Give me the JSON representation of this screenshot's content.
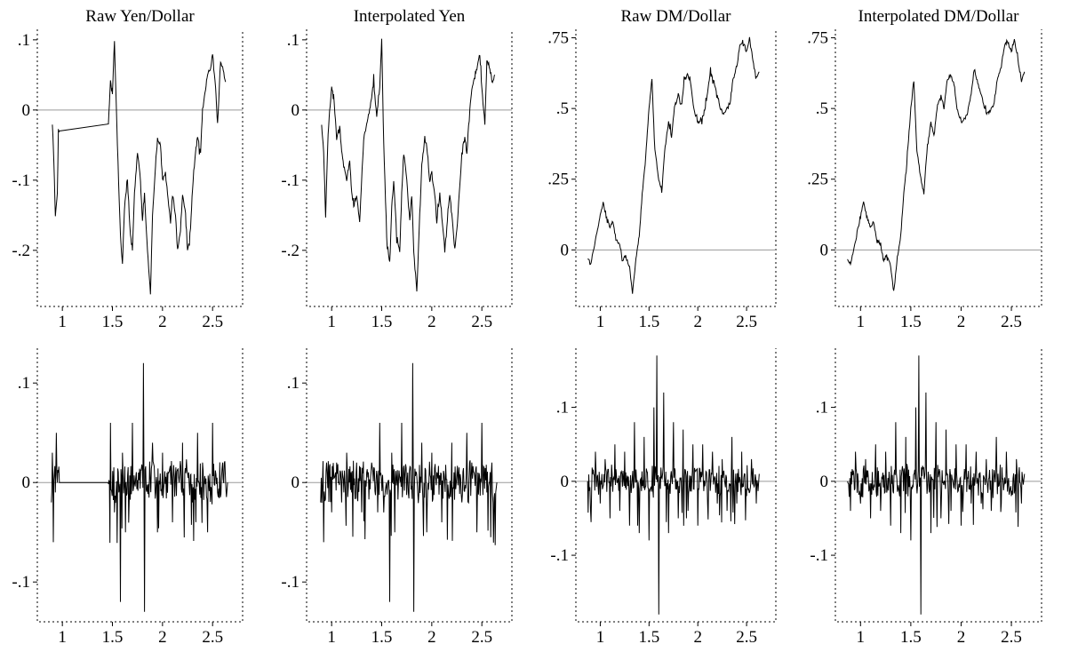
{
  "chart_data": [
    {
      "type": "line",
      "title": "Raw Yen/Dollar",
      "xlabel": "",
      "ylabel": "",
      "xlim": [
        0.75,
        2.8
      ],
      "ylim": [
        -0.28,
        0.115
      ],
      "xticks": [
        1,
        1.5,
        2,
        2.5
      ],
      "xticklabels": [
        "1",
        "1.5",
        "2",
        "2.5"
      ],
      "yticks": [
        0.1,
        0,
        -0.1,
        -0.2
      ],
      "yticklabels": [
        ".1",
        "0",
        "-.1",
        "-.2"
      ],
      "reference_line": 0,
      "grid": false,
      "series": [
        {
          "color": "#000000",
          "gap": [
            0.97,
            1.46
          ],
          "x": [
            0.9,
            0.91,
            0.93,
            0.95,
            0.96,
            0.97,
            1.46,
            1.48,
            1.5,
            1.52,
            1.55,
            1.58,
            1.6,
            1.62,
            1.65,
            1.68,
            1.7,
            1.72,
            1.75,
            1.78,
            1.8,
            1.82,
            1.85,
            1.88,
            1.9,
            1.93,
            1.95,
            1.98,
            2.0,
            2.03,
            2.05,
            2.08,
            2.1,
            2.13,
            2.15,
            2.18,
            2.2,
            2.23,
            2.25,
            2.28,
            2.3,
            2.33,
            2.35,
            2.38,
            2.4,
            2.43,
            2.45,
            2.48,
            2.5,
            2.53,
            2.55,
            2.58,
            2.6,
            2.63
          ],
          "y": [
            -0.02,
            -0.05,
            -0.15,
            -0.12,
            -0.03,
            -0.03,
            -0.02,
            0.04,
            0.02,
            0.1,
            -0.05,
            -0.18,
            -0.22,
            -0.14,
            -0.1,
            -0.18,
            -0.2,
            -0.12,
            -0.06,
            -0.1,
            -0.16,
            -0.12,
            -0.2,
            -0.26,
            -0.15,
            -0.08,
            -0.04,
            -0.05,
            -0.1,
            -0.09,
            -0.12,
            -0.16,
            -0.12,
            -0.15,
            -0.2,
            -0.17,
            -0.12,
            -0.15,
            -0.2,
            -0.17,
            -0.11,
            -0.06,
            -0.04,
            -0.06,
            0.0,
            0.03,
            0.05,
            0.06,
            0.08,
            0.03,
            -0.02,
            0.07,
            0.06,
            0.04
          ]
        }
      ]
    },
    {
      "type": "line",
      "title": "Interpolated Yen",
      "xlabel": "",
      "ylabel": "",
      "xlim": [
        0.75,
        2.8
      ],
      "ylim": [
        -0.28,
        0.115
      ],
      "xticks": [
        1,
        1.5,
        2,
        2.5
      ],
      "xticklabels": [
        "1",
        "1.5",
        "2",
        "2.5"
      ],
      "yticks": [
        0.1,
        0,
        -0.1,
        -0.2
      ],
      "yticklabels": [
        ".1",
        "0",
        "-.1",
        "-.2"
      ],
      "reference_line": 0,
      "grid": false,
      "series": [
        {
          "color": "#000000",
          "x": [
            0.9,
            0.92,
            0.94,
            0.96,
            0.98,
            1.0,
            1.02,
            1.05,
            1.08,
            1.1,
            1.12,
            1.15,
            1.18,
            1.2,
            1.22,
            1.25,
            1.28,
            1.3,
            1.32,
            1.35,
            1.38,
            1.4,
            1.42,
            1.45,
            1.48,
            1.5,
            1.52,
            1.55,
            1.58,
            1.6,
            1.62,
            1.65,
            1.68,
            1.7,
            1.72,
            1.75,
            1.78,
            1.8,
            1.82,
            1.85,
            1.88,
            1.9,
            1.93,
            1.95,
            1.98,
            2.0,
            2.03,
            2.05,
            2.08,
            2.1,
            2.13,
            2.15,
            2.18,
            2.2,
            2.23,
            2.25,
            2.28,
            2.3,
            2.33,
            2.35,
            2.38,
            2.4,
            2.43,
            2.45,
            2.48,
            2.5,
            2.53,
            2.55,
            2.58,
            2.6,
            2.63
          ],
          "y": [
            -0.02,
            -0.06,
            -0.15,
            -0.05,
            0.0,
            0.03,
            0.02,
            -0.04,
            -0.02,
            -0.06,
            -0.08,
            -0.1,
            -0.07,
            -0.12,
            -0.14,
            -0.12,
            -0.16,
            -0.1,
            -0.04,
            -0.02,
            0.0,
            0.02,
            0.04,
            -0.01,
            0.03,
            0.1,
            -0.05,
            -0.18,
            -0.22,
            -0.14,
            -0.1,
            -0.18,
            -0.2,
            -0.12,
            -0.06,
            -0.1,
            -0.16,
            -0.12,
            -0.2,
            -0.26,
            -0.15,
            -0.08,
            -0.04,
            -0.05,
            -0.1,
            -0.09,
            -0.12,
            -0.16,
            -0.12,
            -0.15,
            -0.2,
            -0.17,
            -0.12,
            -0.15,
            -0.2,
            -0.17,
            -0.11,
            -0.06,
            -0.04,
            -0.06,
            0.0,
            0.03,
            0.05,
            0.06,
            0.08,
            0.03,
            -0.02,
            0.07,
            0.06,
            0.04,
            0.05
          ]
        }
      ]
    },
    {
      "type": "line",
      "title": "Raw DM/Dollar",
      "xlabel": "",
      "ylabel": "",
      "xlim": [
        0.75,
        2.8
      ],
      "ylim": [
        -0.2,
        0.78
      ],
      "xticks": [
        1,
        1.5,
        2,
        2.5
      ],
      "xticklabels": [
        "1",
        "1.5",
        "2",
        "2.5"
      ],
      "yticks": [
        0.75,
        0.5,
        0.25,
        0
      ],
      "yticklabels": [
        ".75",
        ".5",
        ".25",
        "0"
      ],
      "reference_line": 0,
      "grid": false,
      "series": [
        {
          "color": "#000000",
          "x": [
            0.87,
            0.9,
            0.93,
            0.96,
            1.0,
            1.03,
            1.06,
            1.1,
            1.13,
            1.16,
            1.2,
            1.23,
            1.26,
            1.3,
            1.33,
            1.36,
            1.4,
            1.43,
            1.46,
            1.5,
            1.53,
            1.56,
            1.6,
            1.63,
            1.66,
            1.7,
            1.73,
            1.76,
            1.8,
            1.83,
            1.86,
            1.9,
            1.93,
            1.96,
            2.0,
            2.03,
            2.06,
            2.1,
            2.13,
            2.16,
            2.2,
            2.23,
            2.26,
            2.3,
            2.33,
            2.36,
            2.4,
            2.43,
            2.46,
            2.5,
            2.53,
            2.56,
            2.6,
            2.63
          ],
          "y": [
            -0.03,
            -0.05,
            0.0,
            0.05,
            0.12,
            0.17,
            0.12,
            0.08,
            0.1,
            0.04,
            0.02,
            -0.04,
            -0.02,
            -0.06,
            -0.15,
            -0.05,
            0.05,
            0.2,
            0.3,
            0.5,
            0.6,
            0.35,
            0.25,
            0.2,
            0.35,
            0.45,
            0.4,
            0.5,
            0.55,
            0.5,
            0.6,
            0.62,
            0.58,
            0.5,
            0.45,
            0.46,
            0.48,
            0.55,
            0.64,
            0.6,
            0.55,
            0.5,
            0.48,
            0.5,
            0.52,
            0.6,
            0.65,
            0.72,
            0.74,
            0.7,
            0.75,
            0.68,
            0.6,
            0.63
          ]
        }
      ]
    },
    {
      "type": "line",
      "title": "Interpolated DM/Dollar",
      "xlabel": "",
      "ylabel": "",
      "xlim": [
        0.75,
        2.8
      ],
      "ylim": [
        -0.2,
        0.78
      ],
      "xticks": [
        1,
        1.5,
        2,
        2.5
      ],
      "xticklabels": [
        "1",
        "1.5",
        "2",
        "2.5"
      ],
      "yticks": [
        0.75,
        0.5,
        0.25,
        0
      ],
      "yticklabels": [
        ".75",
        ".5",
        ".25",
        "0"
      ],
      "reference_line": 0,
      "grid": false,
      "series": [
        {
          "color": "#000000",
          "x": [
            0.87,
            0.9,
            0.93,
            0.96,
            1.0,
            1.03,
            1.06,
            1.1,
            1.13,
            1.16,
            1.2,
            1.23,
            1.26,
            1.3,
            1.33,
            1.36,
            1.4,
            1.43,
            1.46,
            1.5,
            1.53,
            1.56,
            1.6,
            1.63,
            1.66,
            1.7,
            1.73,
            1.76,
            1.8,
            1.83,
            1.86,
            1.9,
            1.93,
            1.96,
            2.0,
            2.03,
            2.06,
            2.1,
            2.13,
            2.16,
            2.2,
            2.23,
            2.26,
            2.3,
            2.33,
            2.36,
            2.4,
            2.43,
            2.46,
            2.5,
            2.53,
            2.56,
            2.6,
            2.63
          ],
          "y": [
            -0.03,
            -0.05,
            0.0,
            0.05,
            0.12,
            0.17,
            0.12,
            0.08,
            0.1,
            0.04,
            0.02,
            -0.04,
            -0.02,
            -0.06,
            -0.15,
            -0.05,
            0.05,
            0.2,
            0.3,
            0.5,
            0.6,
            0.35,
            0.25,
            0.2,
            0.35,
            0.45,
            0.4,
            0.5,
            0.55,
            0.5,
            0.6,
            0.62,
            0.58,
            0.5,
            0.45,
            0.46,
            0.48,
            0.55,
            0.64,
            0.6,
            0.55,
            0.5,
            0.48,
            0.5,
            0.52,
            0.6,
            0.65,
            0.72,
            0.74,
            0.7,
            0.75,
            0.68,
            0.6,
            0.63
          ]
        }
      ]
    },
    {
      "type": "line",
      "title": "",
      "xlabel": "",
      "ylabel": "",
      "xlim": [
        0.75,
        2.8
      ],
      "ylim": [
        -0.14,
        0.135
      ],
      "xticks": [
        1,
        1.5,
        2,
        2.5
      ],
      "xticklabels": [
        "1",
        "1.5",
        "2",
        "2.5"
      ],
      "yticks": [
        0.1,
        0,
        -0.1
      ],
      "yticklabels": [
        ".1",
        "0",
        "-.1"
      ],
      "reference_line": 0,
      "grid": false,
      "series": [
        {
          "color": "#000000",
          "gap": [
            0.97,
            1.46
          ],
          "x": [
            0.89,
            0.9,
            0.91,
            0.92,
            0.93,
            0.94,
            0.95,
            0.96,
            0.97,
            1.46,
            1.48,
            1.52,
            1.58,
            1.6,
            1.63,
            1.7,
            1.76,
            1.81,
            1.82,
            1.9,
            1.95,
            2.0,
            2.1,
            2.2,
            2.3,
            2.35,
            2.4,
            2.45,
            2.5,
            2.55,
            2.6,
            2.65
          ],
          "y": [
            -0.02,
            0.03,
            -0.06,
            0.01,
            -0.01,
            0.05,
            0.0,
            0.01,
            0.0,
            0.0,
            0.06,
            -0.03,
            -0.12,
            0.03,
            -0.05,
            0.06,
            0.01,
            0.12,
            -0.13,
            0.04,
            -0.05,
            0.03,
            -0.04,
            0.04,
            -0.02,
            0.05,
            0.02,
            -0.05,
            0.06,
            -0.01,
            0.02,
            0.0
          ]
        }
      ]
    },
    {
      "type": "line",
      "title": "",
      "xlabel": "",
      "ylabel": "",
      "xlim": [
        0.75,
        2.8
      ],
      "ylim": [
        -0.14,
        0.135
      ],
      "xticks": [
        1,
        1.5,
        2,
        2.5
      ],
      "xticklabels": [
        "1",
        "1.5",
        "2",
        "2.5"
      ],
      "yticks": [
        0.1,
        0,
        -0.1
      ],
      "yticklabels": [
        ".1",
        "0",
        "-.1"
      ],
      "reference_line": 0,
      "grid": false,
      "series": [
        {
          "color": "#000000",
          "x": [
            0.89,
            0.92,
            0.95,
            1.0,
            1.05,
            1.1,
            1.15,
            1.2,
            1.25,
            1.3,
            1.35,
            1.4,
            1.46,
            1.48,
            1.52,
            1.58,
            1.6,
            1.63,
            1.7,
            1.76,
            1.81,
            1.82,
            1.9,
            1.95,
            2.0,
            2.1,
            2.2,
            2.3,
            2.35,
            2.4,
            2.45,
            2.5,
            2.55,
            2.6,
            2.65
          ],
          "y": [
            -0.02,
            -0.06,
            0.02,
            -0.03,
            0.02,
            -0.02,
            0.03,
            -0.01,
            0.02,
            -0.03,
            0.01,
            0.02,
            -0.03,
            0.06,
            -0.03,
            -0.12,
            0.03,
            -0.05,
            0.06,
            0.01,
            0.12,
            -0.13,
            0.04,
            -0.05,
            0.03,
            -0.04,
            0.04,
            -0.02,
            0.05,
            0.02,
            -0.05,
            0.06,
            -0.01,
            0.02,
            0.0
          ]
        }
      ]
    },
    {
      "type": "line",
      "title": "",
      "xlabel": "",
      "ylabel": "",
      "xlim": [
        0.75,
        2.8
      ],
      "ylim": [
        -0.19,
        0.18
      ],
      "xticks": [
        1,
        1.5,
        2,
        2.5
      ],
      "xticklabels": [
        "1",
        "1.5",
        "2",
        "2.5"
      ],
      "yticks": [
        0.1,
        0,
        -0.1
      ],
      "yticklabels": [
        ".1",
        "0",
        "-.1"
      ],
      "reference_line": 0,
      "grid": false,
      "series": [
        {
          "color": "#000000",
          "x": [
            0.87,
            0.9,
            0.95,
            1.0,
            1.05,
            1.1,
            1.15,
            1.2,
            1.25,
            1.3,
            1.35,
            1.4,
            1.45,
            1.5,
            1.55,
            1.58,
            1.6,
            1.65,
            1.7,
            1.75,
            1.8,
            1.85,
            1.9,
            1.95,
            2.0,
            2.05,
            2.1,
            2.15,
            2.2,
            2.25,
            2.3,
            2.35,
            2.4,
            2.45,
            2.5,
            2.55,
            2.6,
            2.63
          ],
          "y": [
            0.0,
            -0.04,
            0.04,
            -0.03,
            0.03,
            -0.05,
            0.05,
            -0.04,
            0.04,
            -0.06,
            0.08,
            -0.07,
            0.06,
            -0.08,
            0.1,
            0.17,
            -0.18,
            0.12,
            -0.07,
            0.08,
            -0.05,
            0.07,
            -0.04,
            0.05,
            -0.06,
            0.05,
            -0.03,
            0.04,
            -0.03,
            0.03,
            -0.04,
            0.06,
            -0.03,
            0.04,
            -0.02,
            0.03,
            -0.03,
            0.01
          ]
        }
      ]
    },
    {
      "type": "line",
      "title": "",
      "xlabel": "",
      "ylabel": "",
      "xlim": [
        0.75,
        2.8
      ],
      "ylim": [
        -0.19,
        0.18
      ],
      "xticks": [
        1,
        1.5,
        2,
        2.5
      ],
      "xticklabels": [
        "1",
        "1.5",
        "2",
        "2.5"
      ],
      "yticks": [
        0.1,
        0,
        -0.1
      ],
      "yticklabels": [
        ".1",
        "0",
        "-.1"
      ],
      "reference_line": 0,
      "grid": false,
      "series": [
        {
          "color": "#000000",
          "x": [
            0.87,
            0.9,
            0.95,
            1.0,
            1.05,
            1.1,
            1.15,
            1.2,
            1.25,
            1.3,
            1.35,
            1.4,
            1.45,
            1.5,
            1.55,
            1.58,
            1.6,
            1.65,
            1.7,
            1.75,
            1.8,
            1.85,
            1.9,
            1.95,
            2.0,
            2.05,
            2.1,
            2.15,
            2.2,
            2.25,
            2.3,
            2.35,
            2.4,
            2.45,
            2.5,
            2.55,
            2.6,
            2.63
          ],
          "y": [
            0.0,
            -0.04,
            0.04,
            -0.03,
            0.03,
            -0.05,
            0.05,
            -0.04,
            0.04,
            -0.06,
            0.08,
            -0.07,
            0.06,
            -0.08,
            0.1,
            0.17,
            -0.18,
            0.12,
            -0.07,
            0.08,
            -0.05,
            0.07,
            -0.04,
            0.05,
            -0.06,
            0.05,
            -0.03,
            0.04,
            -0.03,
            0.03,
            -0.04,
            0.06,
            -0.03,
            0.04,
            -0.02,
            0.03,
            -0.03,
            0.01
          ]
        }
      ]
    }
  ]
}
